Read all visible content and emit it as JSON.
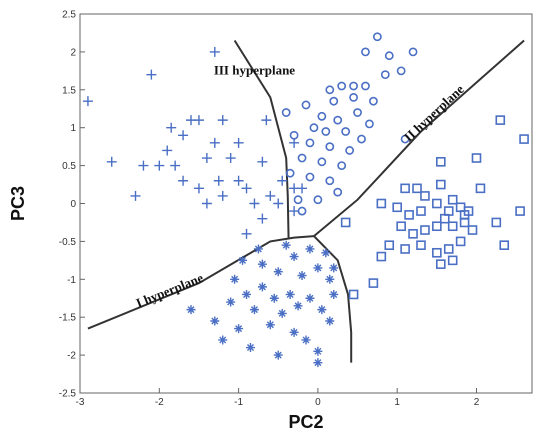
{
  "chart_data": {
    "type": "scatter",
    "title": "",
    "xlabel": "PC2",
    "ylabel": "PC3",
    "xlim": [
      -3,
      2.7
    ],
    "ylim": [
      -2.5,
      2.5
    ],
    "xticks": [
      -3,
      -2,
      -1,
      0,
      1,
      2
    ],
    "yticks": [
      -2.5,
      -2,
      -1.5,
      -1,
      -0.5,
      0,
      0.5,
      1,
      1.5,
      2,
      2.5
    ],
    "xtick_labels": [
      "-3",
      "-2",
      "-1",
      "0",
      "1",
      "2"
    ],
    "ytick_labels": [
      "-2.5",
      "-2",
      "-1.5",
      "-1",
      "-0.5",
      "0",
      "0.5",
      "1",
      "1.5",
      "2",
      "2.5"
    ],
    "grid": false,
    "colors": {
      "points": "#4a6fc4",
      "boundary": "#333333"
    },
    "annotations": [
      {
        "text": "III hyperplane",
        "x": -0.8,
        "y": 1.7
      },
      {
        "text": "II hyperplane",
        "x": 1.5,
        "y": 1.15
      },
      {
        "text": "I  hyperplane",
        "x": -1.85,
        "y": -1.2
      }
    ],
    "boundaries": [
      {
        "name": "I",
        "points": [
          [
            -2.9,
            -1.65
          ],
          [
            -1.5,
            -1.05
          ],
          [
            -0.6,
            -0.5
          ],
          [
            -0.3,
            -0.45
          ],
          [
            -0.05,
            -0.43
          ]
        ]
      },
      {
        "name": "II",
        "points": [
          [
            -0.05,
            -0.43
          ],
          [
            0.5,
            0.05
          ],
          [
            1.3,
            0.95
          ],
          [
            2.6,
            2.15
          ]
        ]
      },
      {
        "name": "III",
        "points": [
          [
            -1.05,
            2.15
          ],
          [
            -0.6,
            1.4
          ],
          [
            -0.4,
            0.6
          ],
          [
            -0.38,
            0.1
          ],
          [
            -0.37,
            -0.45
          ]
        ]
      },
      {
        "name": "boundary-lower",
        "points": [
          [
            -0.05,
            -0.43
          ],
          [
            0.25,
            -0.75
          ],
          [
            0.38,
            -1.2
          ],
          [
            0.42,
            -1.7
          ],
          [
            0.42,
            -2.1
          ]
        ]
      }
    ],
    "series": [
      {
        "marker": "plus",
        "points": [
          [
            -2.9,
            1.35
          ],
          [
            -2.1,
            1.7
          ],
          [
            -1.3,
            2.0
          ],
          [
            -2.6,
            0.55
          ],
          [
            -2.2,
            0.5
          ],
          [
            -2.0,
            0.5
          ],
          [
            -1.9,
            0.7
          ],
          [
            -1.8,
            0.5
          ],
          [
            -1.7,
            0.9
          ],
          [
            -1.7,
            0.3
          ],
          [
            -1.6,
            1.1
          ],
          [
            -1.5,
            1.1
          ],
          [
            -1.5,
            0.2
          ],
          [
            -1.4,
            0.6
          ],
          [
            -1.4,
            0.0
          ],
          [
            -1.3,
            0.8
          ],
          [
            -1.25,
            0.3
          ],
          [
            -1.2,
            0.1
          ],
          [
            -1.1,
            0.6
          ],
          [
            -1.0,
            0.8
          ],
          [
            -1.0,
            0.3
          ],
          [
            -0.9,
            0.2
          ],
          [
            -0.8,
            0.0
          ],
          [
            -0.7,
            -0.2
          ],
          [
            -0.6,
            0.1
          ],
          [
            -0.5,
            0.0
          ],
          [
            -0.45,
            0.3
          ],
          [
            -0.7,
            0.55
          ],
          [
            -0.65,
            1.1
          ],
          [
            -0.3,
            0.8
          ],
          [
            -0.3,
            0.2
          ],
          [
            -0.3,
            -0.1
          ],
          [
            -0.2,
            0.2
          ],
          [
            -0.9,
            -0.4
          ],
          [
            -1.2,
            1.1
          ],
          [
            -2.3,
            0.1
          ],
          [
            -1.85,
            1.0
          ]
        ]
      },
      {
        "marker": "star",
        "points": [
          [
            -0.95,
            -0.75
          ],
          [
            -0.7,
            -0.8
          ],
          [
            -0.5,
            -0.9
          ],
          [
            -0.3,
            -0.7
          ],
          [
            -0.2,
            -0.95
          ],
          [
            0.0,
            -0.85
          ],
          [
            -0.1,
            -0.6
          ],
          [
            0.1,
            -0.65
          ],
          [
            0.15,
            -1.0
          ],
          [
            -1.6,
            -1.4
          ],
          [
            -1.3,
            -1.55
          ],
          [
            -1.1,
            -1.3
          ],
          [
            -0.9,
            -1.2
          ],
          [
            -0.8,
            -1.4
          ],
          [
            -0.7,
            -1.1
          ],
          [
            -0.55,
            -1.25
          ],
          [
            -0.45,
            -1.45
          ],
          [
            -0.35,
            -1.2
          ],
          [
            -0.25,
            -1.35
          ],
          [
            -0.1,
            -1.25
          ],
          [
            0.05,
            -1.4
          ],
          [
            0.15,
            -1.55
          ],
          [
            -0.6,
            -1.6
          ],
          [
            -0.3,
            -1.7
          ],
          [
            -0.15,
            -1.8
          ],
          [
            -1.0,
            -1.65
          ],
          [
            -1.2,
            -1.8
          ],
          [
            -0.85,
            -1.9
          ],
          [
            -0.5,
            -2.0
          ],
          [
            0.0,
            -1.95
          ],
          [
            0.0,
            -2.1
          ],
          [
            0.2,
            -0.85
          ],
          [
            -0.4,
            -0.55
          ],
          [
            0.2,
            -1.2
          ],
          [
            -1.05,
            -1.0
          ],
          [
            -0.75,
            -0.6
          ]
        ]
      },
      {
        "marker": "circle",
        "points": [
          [
            0.75,
            2.2
          ],
          [
            0.6,
            2.0
          ],
          [
            0.9,
            1.95
          ],
          [
            1.2,
            2.0
          ],
          [
            1.05,
            1.75
          ],
          [
            0.85,
            1.7
          ],
          [
            0.6,
            1.55
          ],
          [
            0.3,
            1.55
          ],
          [
            0.45,
            1.4
          ],
          [
            0.2,
            1.35
          ],
          [
            0.7,
            1.35
          ],
          [
            0.5,
            1.2
          ],
          [
            -0.4,
            1.2
          ],
          [
            -0.15,
            1.3
          ],
          [
            0.05,
            1.15
          ],
          [
            0.25,
            1.1
          ],
          [
            0.1,
            0.95
          ],
          [
            0.35,
            0.95
          ],
          [
            0.55,
            0.85
          ],
          [
            -0.3,
            0.9
          ],
          [
            -0.1,
            0.8
          ],
          [
            0.15,
            0.75
          ],
          [
            0.4,
            0.7
          ],
          [
            -0.2,
            0.6
          ],
          [
            0.05,
            0.55
          ],
          [
            0.3,
            0.5
          ],
          [
            -0.1,
            0.35
          ],
          [
            0.15,
            0.3
          ],
          [
            -0.35,
            0.4
          ],
          [
            -0.25,
            0.05
          ],
          [
            0.0,
            0.05
          ],
          [
            -0.2,
            -0.1
          ],
          [
            0.25,
            0.15
          ],
          [
            0.45,
            1.55
          ],
          [
            0.15,
            1.5
          ],
          [
            1.1,
            0.85
          ],
          [
            0.65,
            1.05
          ],
          [
            -0.05,
            1.0
          ]
        ]
      },
      {
        "marker": "square",
        "points": [
          [
            2.3,
            1.1
          ],
          [
            2.6,
            0.85
          ],
          [
            2.0,
            0.6
          ],
          [
            1.55,
            0.55
          ],
          [
            1.1,
            0.2
          ],
          [
            1.25,
            0.2
          ],
          [
            1.35,
            0.1
          ],
          [
            1.55,
            0.25
          ],
          [
            1.7,
            0.05
          ],
          [
            2.05,
            0.2
          ],
          [
            0.8,
            0.0
          ],
          [
            1.0,
            -0.05
          ],
          [
            1.15,
            -0.15
          ],
          [
            1.3,
            -0.1
          ],
          [
            1.5,
            0.0
          ],
          [
            1.65,
            -0.1
          ],
          [
            1.8,
            -0.05
          ],
          [
            1.9,
            -0.1
          ],
          [
            0.35,
            -0.25
          ],
          [
            1.05,
            -0.3
          ],
          [
            1.2,
            -0.4
          ],
          [
            1.35,
            -0.35
          ],
          [
            1.5,
            -0.3
          ],
          [
            1.7,
            -0.3
          ],
          [
            1.85,
            -0.25
          ],
          [
            1.95,
            -0.35
          ],
          [
            2.25,
            -0.25
          ],
          [
            2.55,
            -0.1
          ],
          [
            0.9,
            -0.55
          ],
          [
            1.1,
            -0.6
          ],
          [
            1.3,
            -0.55
          ],
          [
            1.5,
            -0.65
          ],
          [
            1.65,
            -0.6
          ],
          [
            1.8,
            -0.5
          ],
          [
            0.8,
            -0.7
          ],
          [
            1.55,
            -0.8
          ],
          [
            1.7,
            -0.75
          ],
          [
            2.35,
            -0.55
          ],
          [
            0.7,
            -1.05
          ],
          [
            0.45,
            -1.2
          ],
          [
            1.85,
            -0.15
          ],
          [
            1.6,
            -0.2
          ]
        ]
      }
    ]
  }
}
